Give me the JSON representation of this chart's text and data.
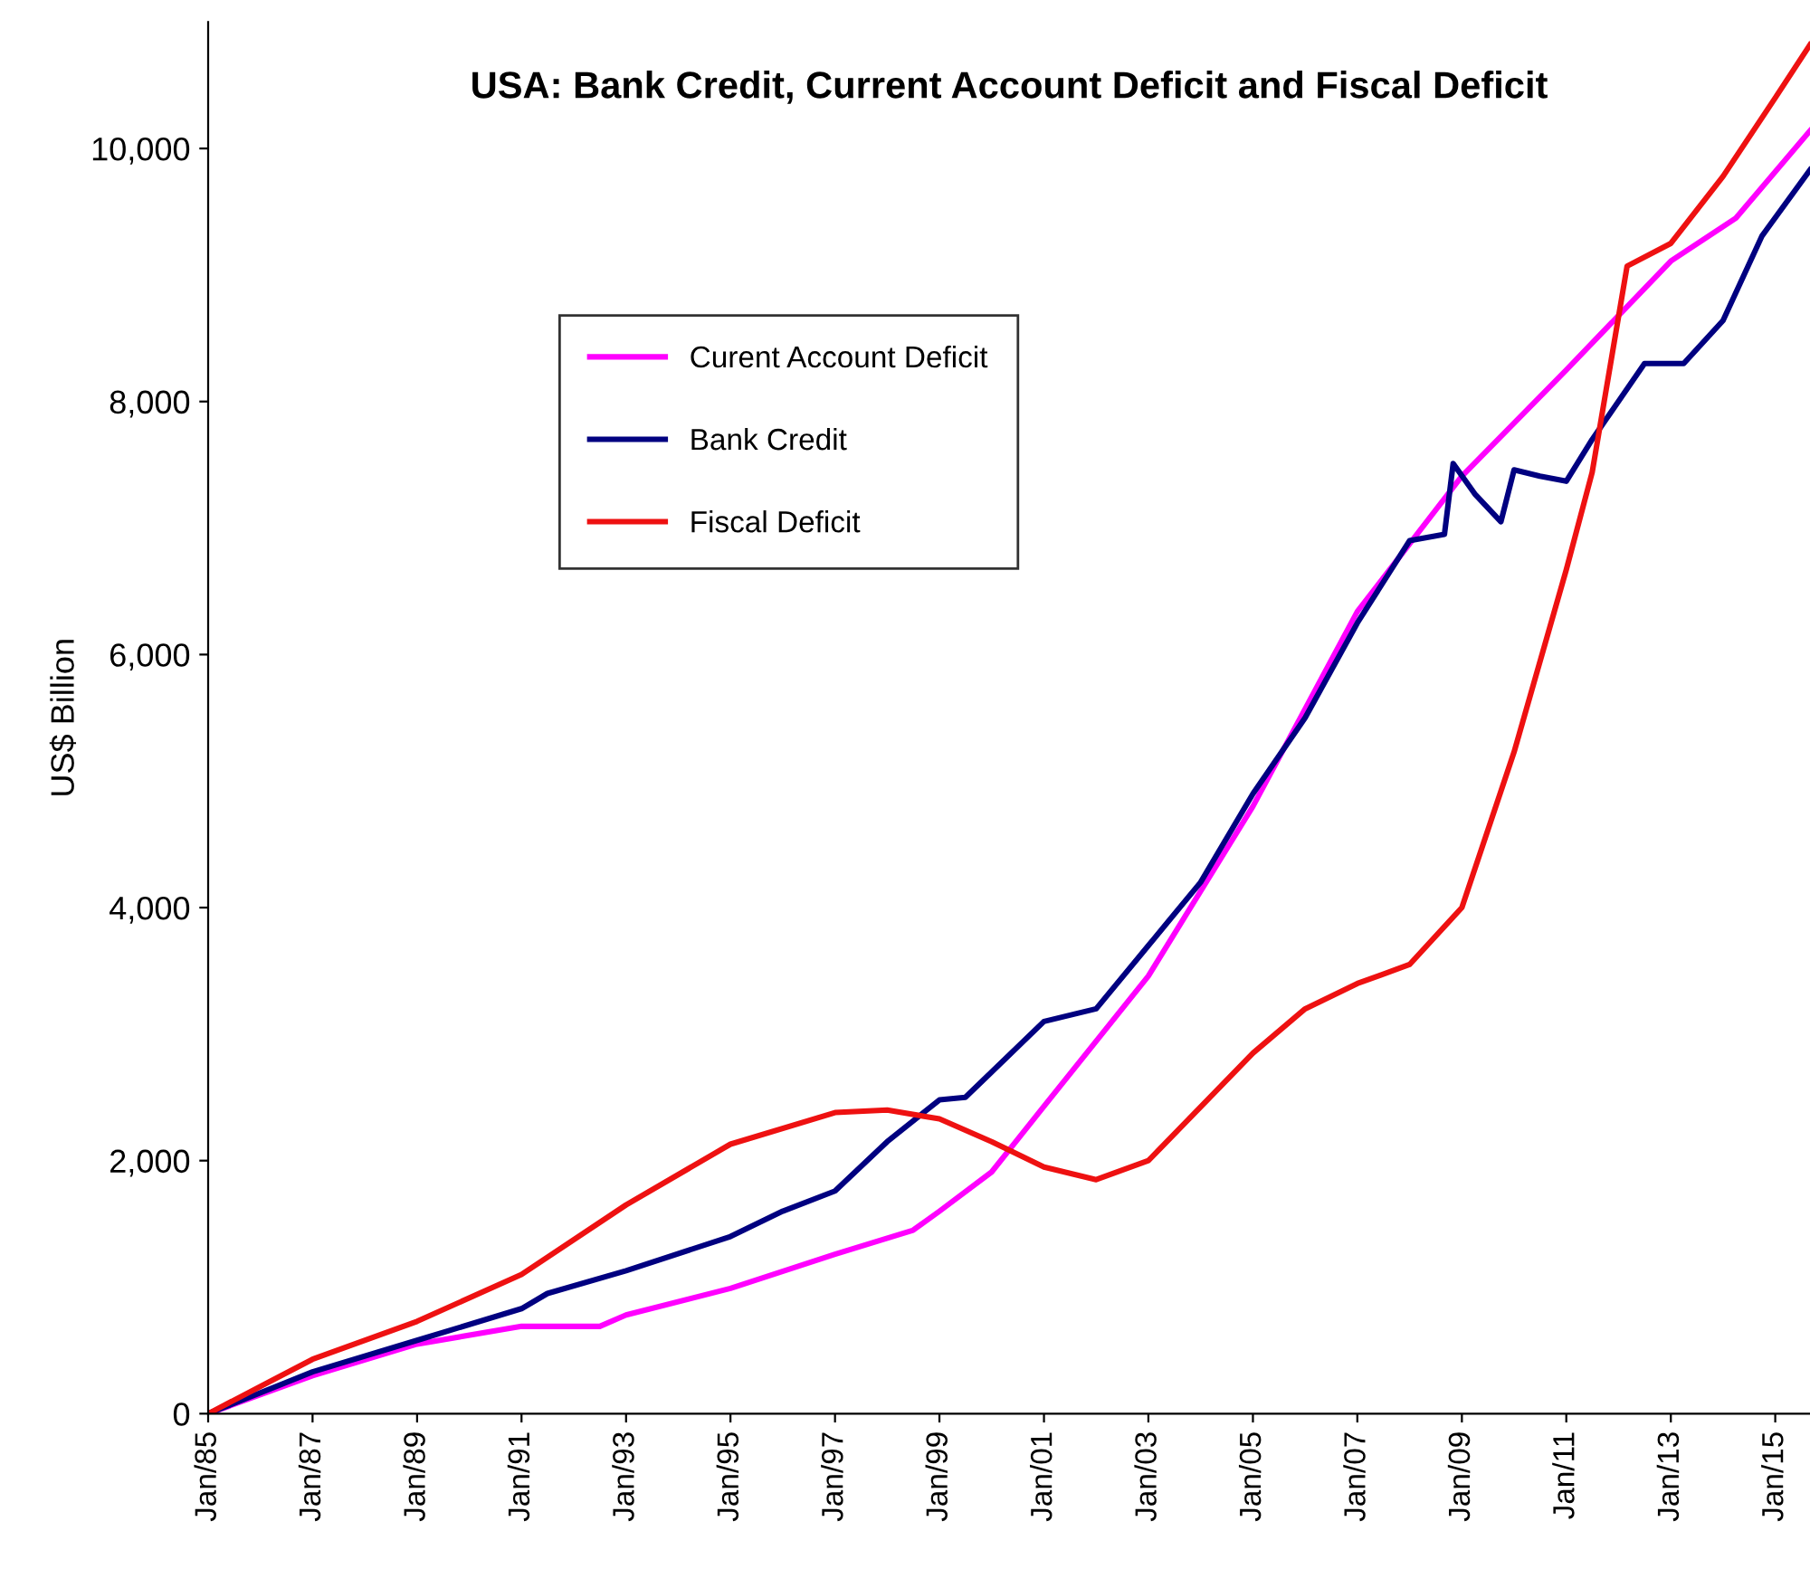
{
  "chart_data": {
    "type": "line",
    "title": "USA: Bank Credit, Current Account Deficit and Fiscal Deficit",
    "ylabel": "US$ Billion",
    "series": [
      {
        "name": "Curent Account Deficit",
        "color": "#ff00ff",
        "x": [
          "1985-01",
          "1987-01",
          "1989-01",
          "1991-01",
          "1992-07",
          "1993-01",
          "1995-01",
          "1997-01",
          "1998-07",
          "1999-01",
          "2000-01",
          "2001-01",
          "2003-01",
          "2005-01",
          "2007-01",
          "2009-01",
          "2011-01",
          "2013-01",
          "2014-04",
          "2015-09"
        ],
        "values": [
          0,
          300,
          550,
          690,
          690,
          780,
          990,
          1260,
          1450,
          1600,
          1910,
          2430,
          3460,
          4800,
          6340,
          7410,
          8250,
          9110,
          9450,
          10140
        ]
      },
      {
        "name": "Bank Credit",
        "color": "#000080",
        "x": [
          "1985-01",
          "1987-01",
          "1989-01",
          "1991-01",
          "1991-07",
          "1993-01",
          "1995-01",
          "1996-01",
          "1997-01",
          "1998-01",
          "1999-01",
          "1999-07",
          "2000-01",
          "2001-01",
          "2002-01",
          "2003-01",
          "2004-01",
          "2005-01",
          "2006-01",
          "2007-01",
          "2008-01",
          "2008-09",
          "2008-11",
          "2009-04",
          "2009-10",
          "2010-01",
          "2010-07",
          "2011-01",
          "2011-07",
          "2012-07",
          "2013-04",
          "2014-01",
          "2014-10",
          "2015-09"
        ],
        "values": [
          0,
          330,
          580,
          830,
          950,
          1130,
          1400,
          1600,
          1760,
          2150,
          2480,
          2500,
          2700,
          3100,
          3200,
          3700,
          4200,
          4900,
          5500,
          6250,
          6900,
          6950,
          7510,
          7270,
          7050,
          7460,
          7410,
          7370,
          7700,
          8300,
          8300,
          8640,
          9310,
          9830
        ]
      },
      {
        "name": "Fiscal Deficit",
        "color": "#ee1111",
        "x": [
          "1985-01",
          "1987-01",
          "1989-01",
          "1991-01",
          "1993-01",
          "1995-01",
          "1997-01",
          "1998-01",
          "1999-01",
          "2000-01",
          "2001-01",
          "2002-01",
          "2003-01",
          "2005-01",
          "2006-01",
          "2007-01",
          "2008-01",
          "2009-01",
          "2010-01",
          "2011-01",
          "2011-07",
          "2012-03",
          "2013-01",
          "2014-01",
          "2015-01",
          "2015-09"
        ],
        "values": [
          0,
          430,
          730,
          1100,
          1650,
          2130,
          2380,
          2400,
          2330,
          2150,
          1950,
          1850,
          2000,
          2850,
          3200,
          3400,
          3550,
          4000,
          5230,
          6670,
          7440,
          9070,
          9250,
          9780,
          10400,
          10820
        ]
      }
    ],
    "xlim": [
      "1985-01",
      "2015-09"
    ],
    "xticks": [
      {
        "value": "1985-01",
        "label": "Jan/85"
      },
      {
        "value": "1987-01",
        "label": "Jan/87"
      },
      {
        "value": "1989-01",
        "label": "Jan/89"
      },
      {
        "value": "1991-01",
        "label": "Jan/91"
      },
      {
        "value": "1993-01",
        "label": "Jan/93"
      },
      {
        "value": "1995-01",
        "label": "Jan/95"
      },
      {
        "value": "1997-01",
        "label": "Jan/97"
      },
      {
        "value": "1999-01",
        "label": "Jan/99"
      },
      {
        "value": "2001-01",
        "label": "Jan/01"
      },
      {
        "value": "2003-01",
        "label": "Jan/03"
      },
      {
        "value": "2005-01",
        "label": "Jan/05"
      },
      {
        "value": "2007-01",
        "label": "Jan/07"
      },
      {
        "value": "2009-01",
        "label": "Jan/09"
      },
      {
        "value": "2011-01",
        "label": "Jan/11"
      },
      {
        "value": "2013-01",
        "label": "Jan/13"
      },
      {
        "value": "2015-01",
        "label": "Jan/15"
      }
    ],
    "ylim": [
      0,
      11000
    ],
    "yticks": [
      0,
      {
        "value": 2000,
        "label": "2,000"
      },
      {
        "value": 4000,
        "label": "4,000"
      },
      {
        "value": 6000,
        "label": "6,000"
      },
      {
        "value": 8000,
        "label": "8,000"
      },
      {
        "value": 10000,
        "label": "10,000"
      }
    ],
    "grid": false,
    "legend": "top left",
    "marker": "none",
    "line_style": "solid"
  }
}
